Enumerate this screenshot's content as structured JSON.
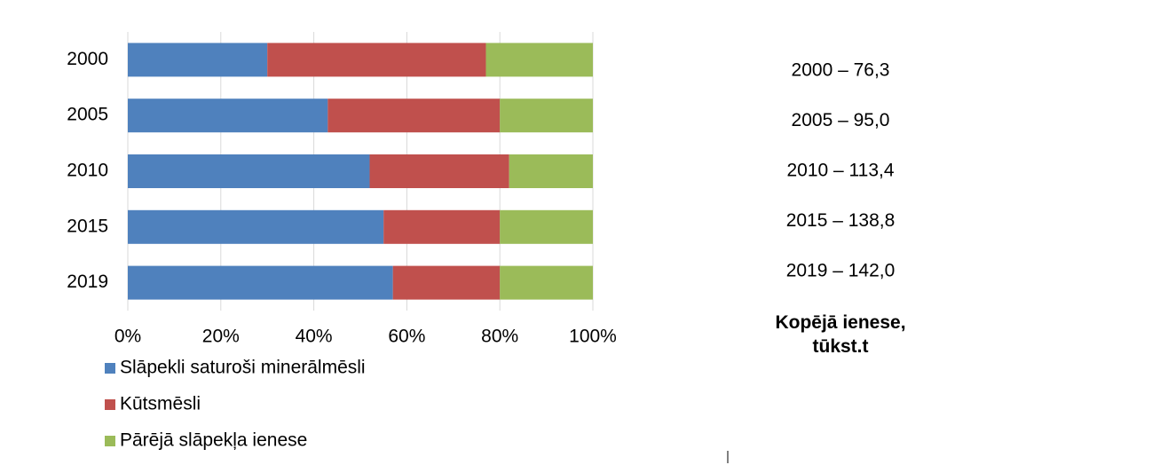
{
  "chart_data": {
    "type": "stacked_barh_percent",
    "categories": [
      "2000",
      "2005",
      "2010",
      "2015",
      "2019"
    ],
    "series": [
      {
        "name": "Slāpekli saturoši minerālmēsli",
        "color": "#4f81bd",
        "values": [
          30,
          43,
          52,
          55,
          57
        ]
      },
      {
        "name": "Kūtsmēsli",
        "color": "#c0504d",
        "values": [
          47,
          37,
          30,
          25,
          23
        ]
      },
      {
        "name": "Pārējā slāpekļa ienese",
        "color": "#9bbb59",
        "values": [
          23,
          20,
          18,
          20,
          20
        ]
      }
    ],
    "xlim": [
      0,
      100
    ],
    "xticks": [
      {
        "value": 0,
        "label": "0%"
      },
      {
        "value": 20,
        "label": "20%"
      },
      {
        "value": 40,
        "label": "40%"
      },
      {
        "value": 60,
        "label": "60%"
      },
      {
        "value": 80,
        "label": "80%"
      },
      {
        "value": 100,
        "label": "100%"
      }
    ],
    "grid": true,
    "annotations": [
      "2000 – 76,3",
      "2005 – 95,0",
      "2010 – 113,4",
      "2015 – 138,8",
      "2019 – 142,0"
    ],
    "annotation_title": "Kopējā ienese, tūkst.t"
  }
}
